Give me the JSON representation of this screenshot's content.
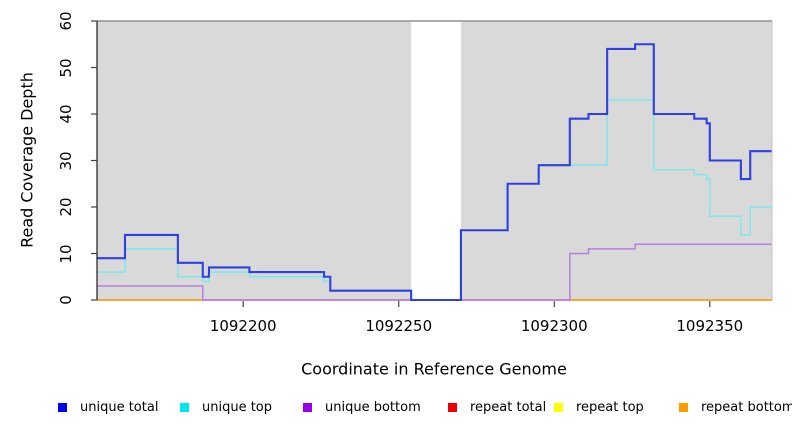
{
  "chart_data": {
    "type": "line",
    "subtype": "step",
    "title": "",
    "xlabel": "Coordinate in Reference Genome",
    "ylabel": "Read Coverage Depth",
    "xlim": [
      1092153,
      1092370
    ],
    "ylim": [
      0,
      60
    ],
    "x_ticks": [
      1092200,
      1092250,
      1092300,
      1092350
    ],
    "y_ticks": [
      0,
      10,
      20,
      30,
      40,
      50,
      60
    ],
    "grid": false,
    "legend_position": "bottom",
    "plot_background": "#d9d9d9",
    "mask_region": {
      "from": 1092254,
      "to": 1092270,
      "color": "#ffffff"
    },
    "series": [
      {
        "name": "unique total",
        "legend_color": "#0000f0",
        "line_color": "#2e40e2",
        "line_width": 2.1,
        "render": true,
        "points": [
          [
            1092153,
            9
          ],
          [
            1092162,
            14
          ],
          [
            1092179,
            8
          ],
          [
            1092187,
            5
          ],
          [
            1092189,
            7
          ],
          [
            1092202,
            6
          ],
          [
            1092226,
            5
          ],
          [
            1092228,
            2
          ],
          [
            1092254,
            0
          ],
          [
            1092270,
            15
          ],
          [
            1092285,
            25
          ],
          [
            1092295,
            29
          ],
          [
            1092305,
            39
          ],
          [
            1092311,
            40
          ],
          [
            1092317,
            54
          ],
          [
            1092326,
            55
          ],
          [
            1092332,
            40
          ],
          [
            1092345,
            39
          ],
          [
            1092349,
            38
          ],
          [
            1092350,
            30
          ],
          [
            1092360,
            26
          ],
          [
            1092363,
            32
          ]
        ]
      },
      {
        "name": "unique top",
        "legend_color": "#00e6ee",
        "line_color": "#7de8ec",
        "line_width": 1.5,
        "render": true,
        "points": [
          [
            1092153,
            6
          ],
          [
            1092162,
            11
          ],
          [
            1092179,
            5
          ],
          [
            1092187,
            4
          ],
          [
            1092189,
            6
          ],
          [
            1092202,
            5
          ],
          [
            1092226,
            4
          ],
          [
            1092228,
            2
          ],
          [
            1092254,
            0
          ],
          [
            1092270,
            15
          ],
          [
            1092285,
            25
          ],
          [
            1092295,
            29
          ],
          [
            1092317,
            43
          ],
          [
            1092332,
            28
          ],
          [
            1092345,
            27
          ],
          [
            1092349,
            26
          ],
          [
            1092350,
            18
          ],
          [
            1092360,
            14
          ],
          [
            1092363,
            20
          ]
        ]
      },
      {
        "name": "unique bottom",
        "legend_color": "#9a00e6",
        "line_color": "#b77ee2",
        "line_width": 1.5,
        "render": true,
        "points": [
          [
            1092153,
            3
          ],
          [
            1092187,
            0
          ],
          [
            1092305,
            10
          ],
          [
            1092311,
            11
          ],
          [
            1092326,
            12
          ]
        ]
      },
      {
        "name": "repeat total",
        "legend_color": "#ee0000",
        "line_color": "#d04e72",
        "line_width": 1.6,
        "render": false,
        "points": [
          [
            1092153,
            0
          ]
        ]
      },
      {
        "name": "repeat top",
        "legend_color": "#ffff00",
        "line_color": "#ffff00",
        "line_width": 1.2,
        "render": false,
        "points": [
          [
            1092153,
            0
          ]
        ]
      },
      {
        "name": "repeat bottom",
        "legend_color": "#ff9a00",
        "line_color": "#ff9d1f",
        "line_width": 1.8,
        "render": false,
        "points": [
          [
            1092153,
            0
          ]
        ]
      }
    ],
    "zero_line_segments": [
      {
        "from": 1092153,
        "to": 1092187,
        "color": "#ff9d1f",
        "width": 1.8
      },
      {
        "from": 1092187,
        "to": 1092305,
        "color": "#d04e72",
        "width": 1.6
      },
      {
        "from": 1092305,
        "to": 1092370,
        "color": "#ff9d1f",
        "width": 1.8
      }
    ]
  },
  "legend": {
    "items": [
      {
        "label": "unique total",
        "color": "#0000f0"
      },
      {
        "label": "unique top",
        "color": "#00e6ee"
      },
      {
        "label": "unique bottom",
        "color": "#9a00e6"
      },
      {
        "label": "repeat total",
        "color": "#ee0000"
      },
      {
        "label": "repeat top",
        "color": "#ffff00"
      },
      {
        "label": "repeat bottom",
        "color": "#ff9a00"
      }
    ]
  }
}
